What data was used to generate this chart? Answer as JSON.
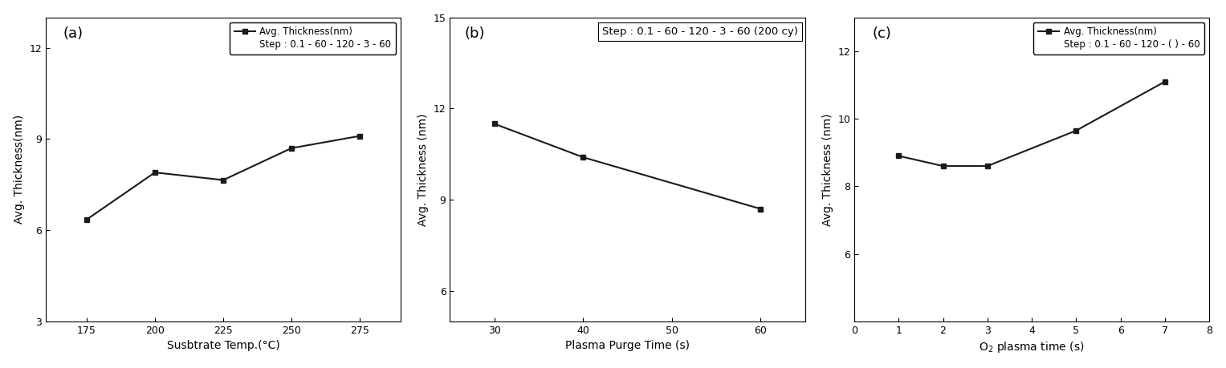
{
  "a": {
    "x": [
      175,
      200,
      225,
      250,
      275
    ],
    "y": [
      6.35,
      7.9,
      7.65,
      8.7,
      9.1
    ],
    "xlabel": "Susbtrate Temp.(°C)",
    "ylabel": "Avg. Thickness(nm)",
    "ylim": [
      3,
      13
    ],
    "yticks": [
      3,
      6,
      9,
      12
    ],
    "xlim": [
      160,
      290
    ],
    "xticks": [
      175,
      200,
      225,
      250,
      275
    ],
    "legend_line1": "Avg. Thickness(nm)",
    "legend_line2": "Step : 0.1 - 60 - 120 - 3 - 60",
    "linestyle": "-",
    "label": "(a)"
  },
  "b": {
    "x": [
      30,
      40,
      60
    ],
    "y": [
      11.5,
      10.4,
      8.7
    ],
    "xlabel": "Plasma Purge Time (s)",
    "ylabel": "Avg. Thickness (nm)",
    "ylim": [
      5,
      15
    ],
    "yticks": [
      6,
      9,
      12,
      15
    ],
    "xlim": [
      25,
      65
    ],
    "xticks": [
      30,
      40,
      50,
      60
    ],
    "annotation": "Step : 0.1 - 60 - 120 - 3 - 60 (200 cy)",
    "linestyle": "-",
    "label": "(b)"
  },
  "c": {
    "x": [
      1,
      2,
      3,
      5,
      7
    ],
    "y": [
      8.9,
      8.6,
      8.6,
      9.65,
      11.1
    ],
    "xlabel": "O$_2$ plasma time (s)",
    "ylabel": "Avg. Thickness (nm)",
    "ylim": [
      4,
      13
    ],
    "yticks": [
      6,
      8,
      10,
      12
    ],
    "xlim": [
      0,
      8
    ],
    "xticks": [
      0,
      1,
      2,
      3,
      4,
      5,
      6,
      7,
      8
    ],
    "legend_line1": "Avg. Thickness(nm)",
    "legend_line2": "Step : 0.1 - 60 - 120 - ( ) - 60",
    "linestyle": "-",
    "label": "(c)"
  },
  "line_color": "#1a1a1a",
  "marker": "s",
  "markersize": 5,
  "linewidth": 1.5,
  "fontsize_label": 10,
  "fontsize_tick": 9,
  "fontsize_legend": 8.5,
  "fontsize_annot": 9.5
}
